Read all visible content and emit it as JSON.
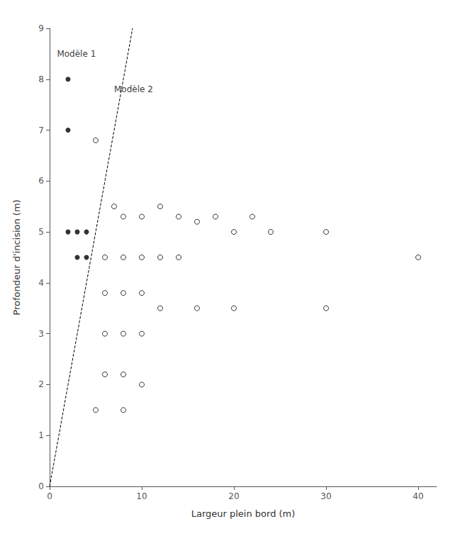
{
  "chart_data": {
    "type": "scatter",
    "x_label": "Largeur plein bord (m)",
    "y_label": "Profondeur d'incision (m)",
    "xlim": [
      0,
      42
    ],
    "ylim": [
      0,
      9
    ],
    "xticks": [
      0,
      10,
      20,
      30,
      40
    ],
    "yticks": [
      0,
      1,
      2,
      3,
      4,
      5,
      6,
      7,
      8,
      9
    ],
    "grid": false,
    "series": [
      {
        "type": "scatter",
        "marker": "filled",
        "color": "#000000",
        "values": [
          [
            2,
            8
          ],
          [
            2,
            7
          ],
          [
            2,
            5
          ],
          [
            3,
            5
          ],
          [
            4,
            5
          ],
          [
            3,
            4.5
          ],
          [
            4,
            4.5
          ]
        ]
      },
      {
        "type": "scatter",
        "marker": "open",
        "color": "#000000",
        "values": [
          [
            5,
            6.8
          ],
          [
            7,
            5.5
          ],
          [
            8,
            5.3
          ],
          [
            10,
            5.3
          ],
          [
            12,
            5.5
          ],
          [
            14,
            5.3
          ],
          [
            16,
            5.2
          ],
          [
            18,
            5.3
          ],
          [
            20,
            5.0
          ],
          [
            22,
            5.3
          ],
          [
            24,
            5.0
          ],
          [
            30,
            5.0
          ],
          [
            40,
            4.5
          ],
          [
            6,
            4.5
          ],
          [
            8,
            4.5
          ],
          [
            10,
            4.5
          ],
          [
            12,
            4.5
          ],
          [
            14,
            4.5
          ],
          [
            6,
            3.8
          ],
          [
            8,
            3.8
          ],
          [
            10,
            3.8
          ],
          [
            12,
            3.5
          ],
          [
            16,
            3.5
          ],
          [
            20,
            3.5
          ],
          [
            30,
            3.5
          ],
          [
            6,
            3.0
          ],
          [
            8,
            3.0
          ],
          [
            10,
            3.0
          ],
          [
            6,
            2.2
          ],
          [
            8,
            2.2
          ],
          [
            10,
            2.0
          ],
          [
            5,
            1.5
          ],
          [
            8,
            1.5
          ]
        ]
      },
      {
        "type": "line",
        "line_style": "dashed",
        "color": "#000000",
        "values": [
          [
            0,
            0
          ],
          [
            9,
            9
          ]
        ]
      }
    ],
    "annotations": [
      {
        "text": "Modèle 1",
        "x": 0.8,
        "y": 8.5
      },
      {
        "text": "Modèle 2",
        "x": 7,
        "y": 7.8
      }
    ]
  }
}
